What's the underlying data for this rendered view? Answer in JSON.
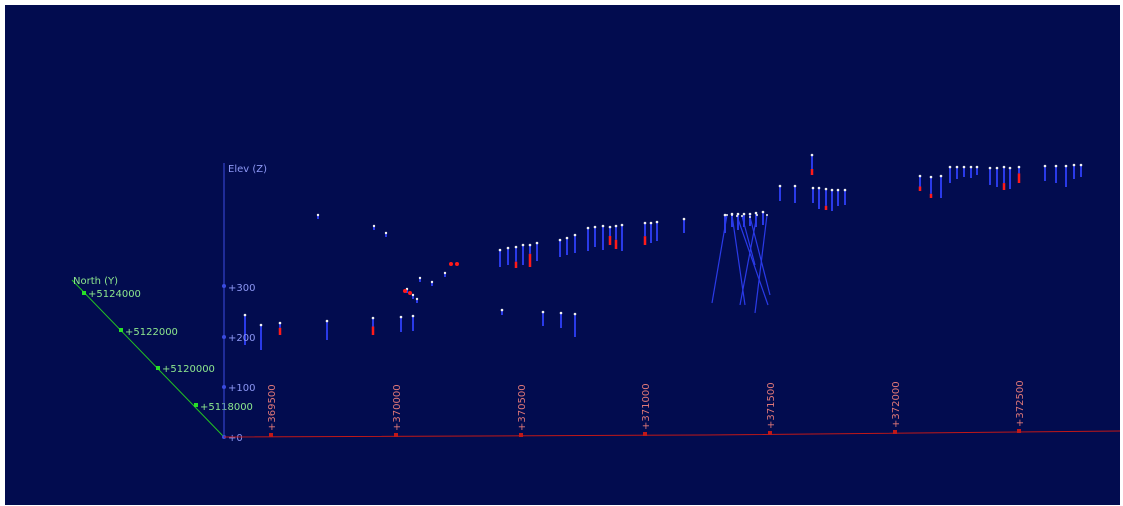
{
  "viewport": {
    "background": "#020c4f"
  },
  "colors": {
    "east_axis": "#c01818",
    "east_label": "#e07878",
    "elev_axis": "#3c4ce0",
    "elev_label": "#8d98f5",
    "north_axis": "#23c423",
    "north_marker": "#27e027",
    "north_label": "#8ee88e",
    "drillhole": "#2a3ae8",
    "collar": "#f2f2f2",
    "assay_high": "#ff1a1a"
  },
  "axes": {
    "elevation": {
      "title": "Elev (Z)",
      "ticks": [
        "+0",
        "+100",
        "+200",
        "+300"
      ]
    },
    "north": {
      "title": "North (Y)",
      "ticks": [
        "+5118000",
        "+5120000",
        "+5122000",
        "+5124000"
      ]
    },
    "east": {
      "ticks": [
        "+369500",
        "+370000",
        "+370500",
        "+371000",
        "+371500",
        "+372000",
        "+372500"
      ]
    }
  }
}
